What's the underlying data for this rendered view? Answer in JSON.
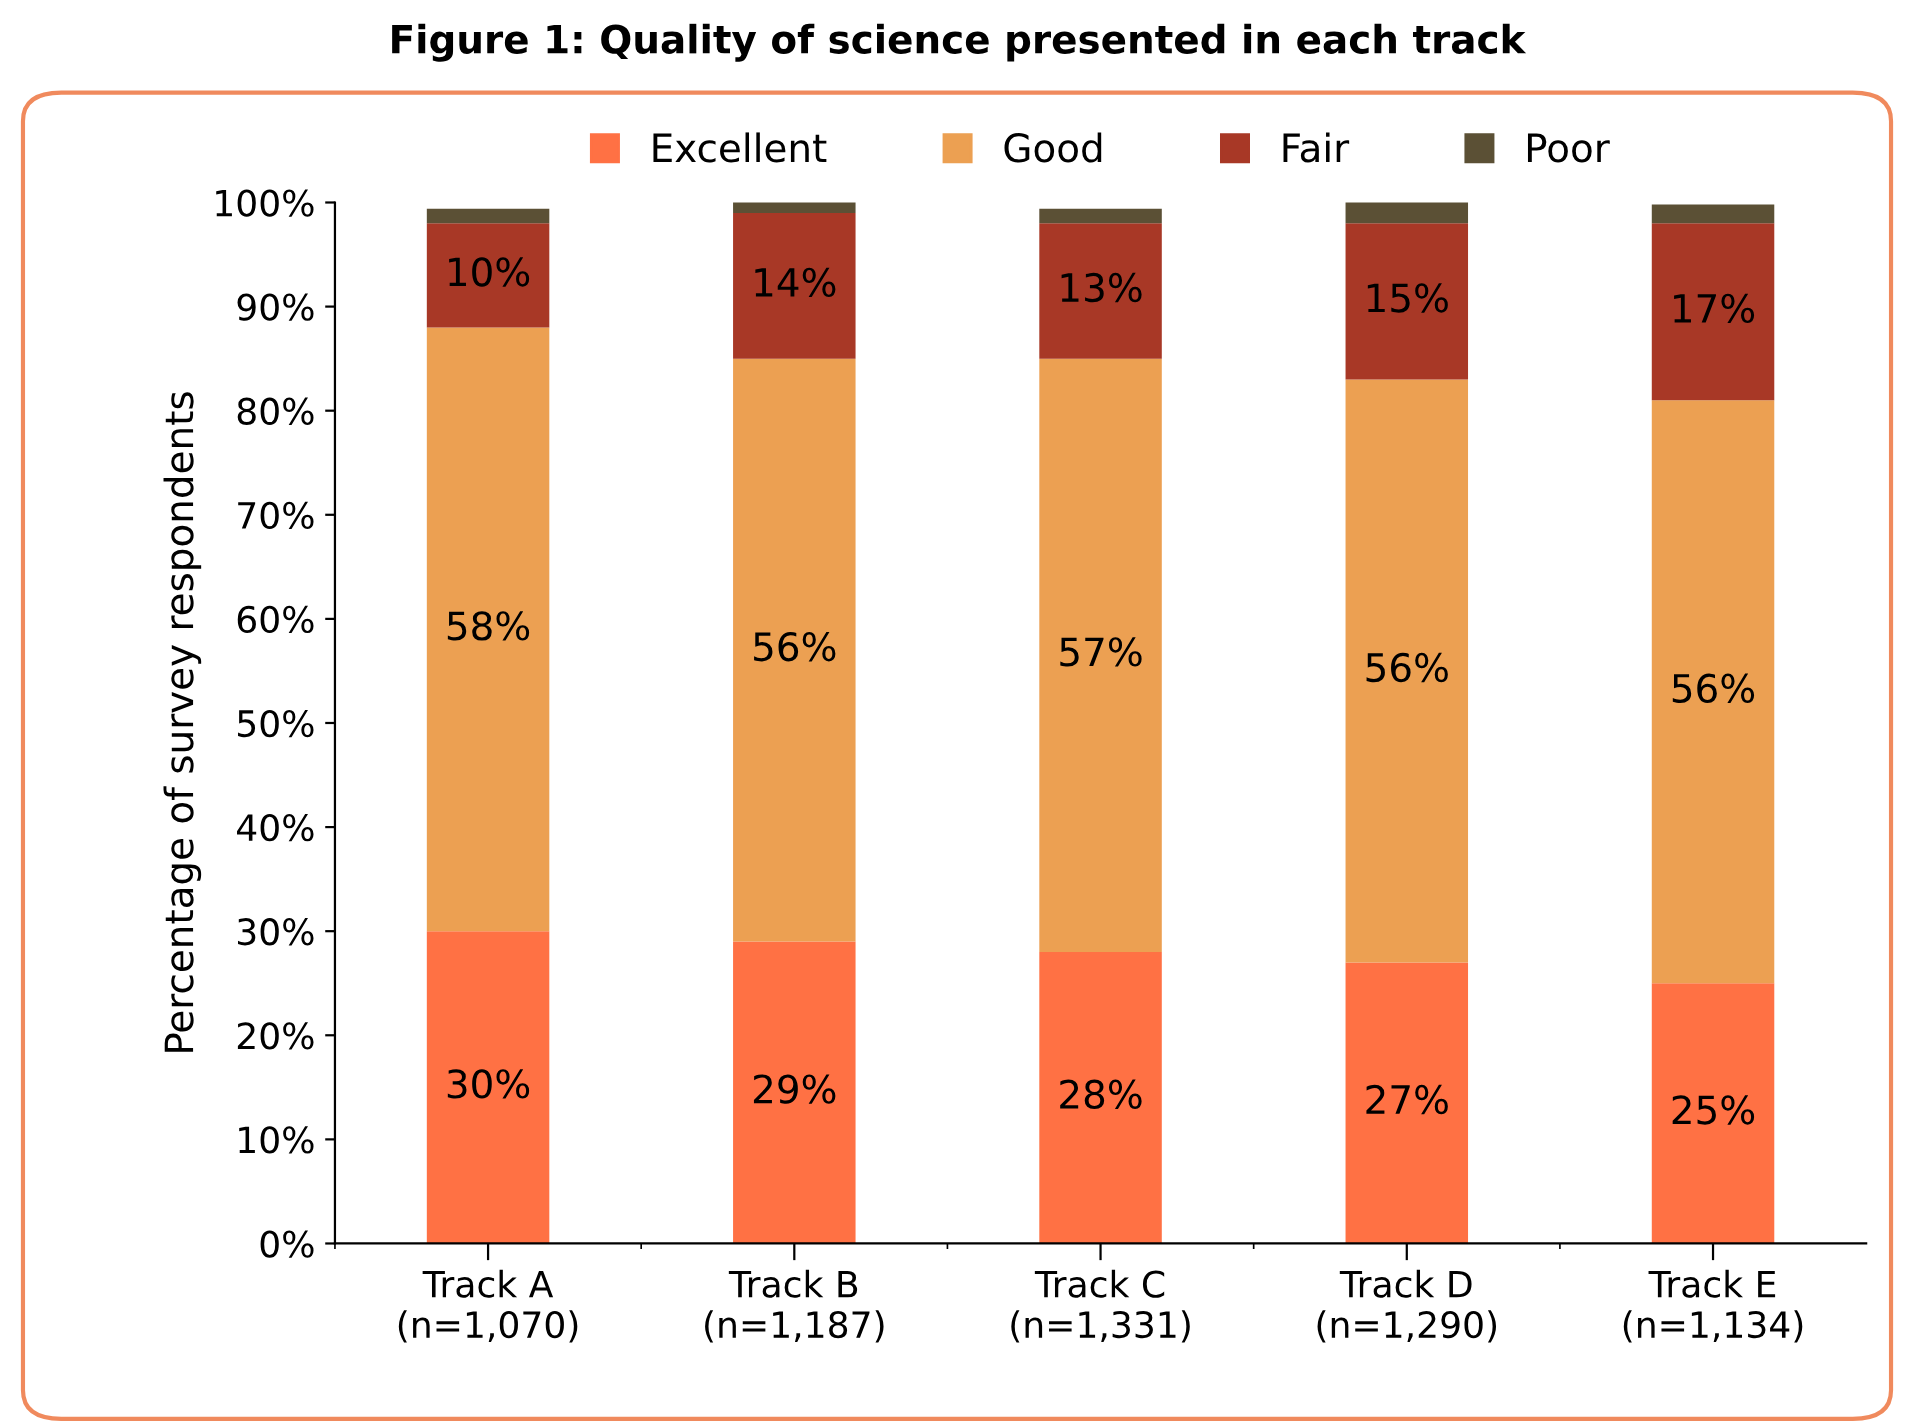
{
  "chart_data": {
    "type": "bar",
    "stacked": true,
    "title": "Figure 1: Quality of science presented in each track",
    "ylabel": "Percentage of survey respondents",
    "categories": [
      "Track A\n(n=1,070)",
      "Track B\n(n=1,187)",
      "Track C\n(n=1,331)",
      "Track D\n(n=1,290)",
      "Track E\n(n=1,134)"
    ],
    "series": [
      {
        "name": "Excellent",
        "color": "#ff7144",
        "values": [
          30,
          29,
          28,
          27,
          25
        ],
        "value_labels": [
          "30%",
          "29%",
          "28%",
          "27%",
          "25%"
        ]
      },
      {
        "name": "Good",
        "color": "#eca052",
        "values": [
          58,
          56,
          57,
          56,
          56
        ],
        "value_labels": [
          "58%",
          "56%",
          "57%",
          "56%",
          "56%"
        ]
      },
      {
        "name": "Fair",
        "color": "#a83826",
        "values": [
          10,
          14,
          13,
          15,
          17
        ],
        "value_labels": [
          "10%",
          "14%",
          "13%",
          "15%",
          "17%"
        ]
      },
      {
        "name": "Poor",
        "color": "#5b5035",
        "values": [
          1.4,
          1.2,
          1.4,
          2.4,
          1.8
        ]
      }
    ],
    "ylim": [
      0,
      100
    ],
    "yticks": [
      {
        "value": 0,
        "label": "0%"
      },
      {
        "value": 10,
        "label": "10%"
      },
      {
        "value": 20,
        "label": "20%"
      },
      {
        "value": 30,
        "label": "30%"
      },
      {
        "value": 40,
        "label": "40%"
      },
      {
        "value": 50,
        "label": "50%"
      },
      {
        "value": 60,
        "label": "60%"
      },
      {
        "value": 70,
        "label": "70%"
      },
      {
        "value": 80,
        "label": "80%"
      },
      {
        "value": 90,
        "label": "90%"
      },
      {
        "value": 100,
        "label": "100%"
      }
    ],
    "legend": "top",
    "grid": false
  }
}
